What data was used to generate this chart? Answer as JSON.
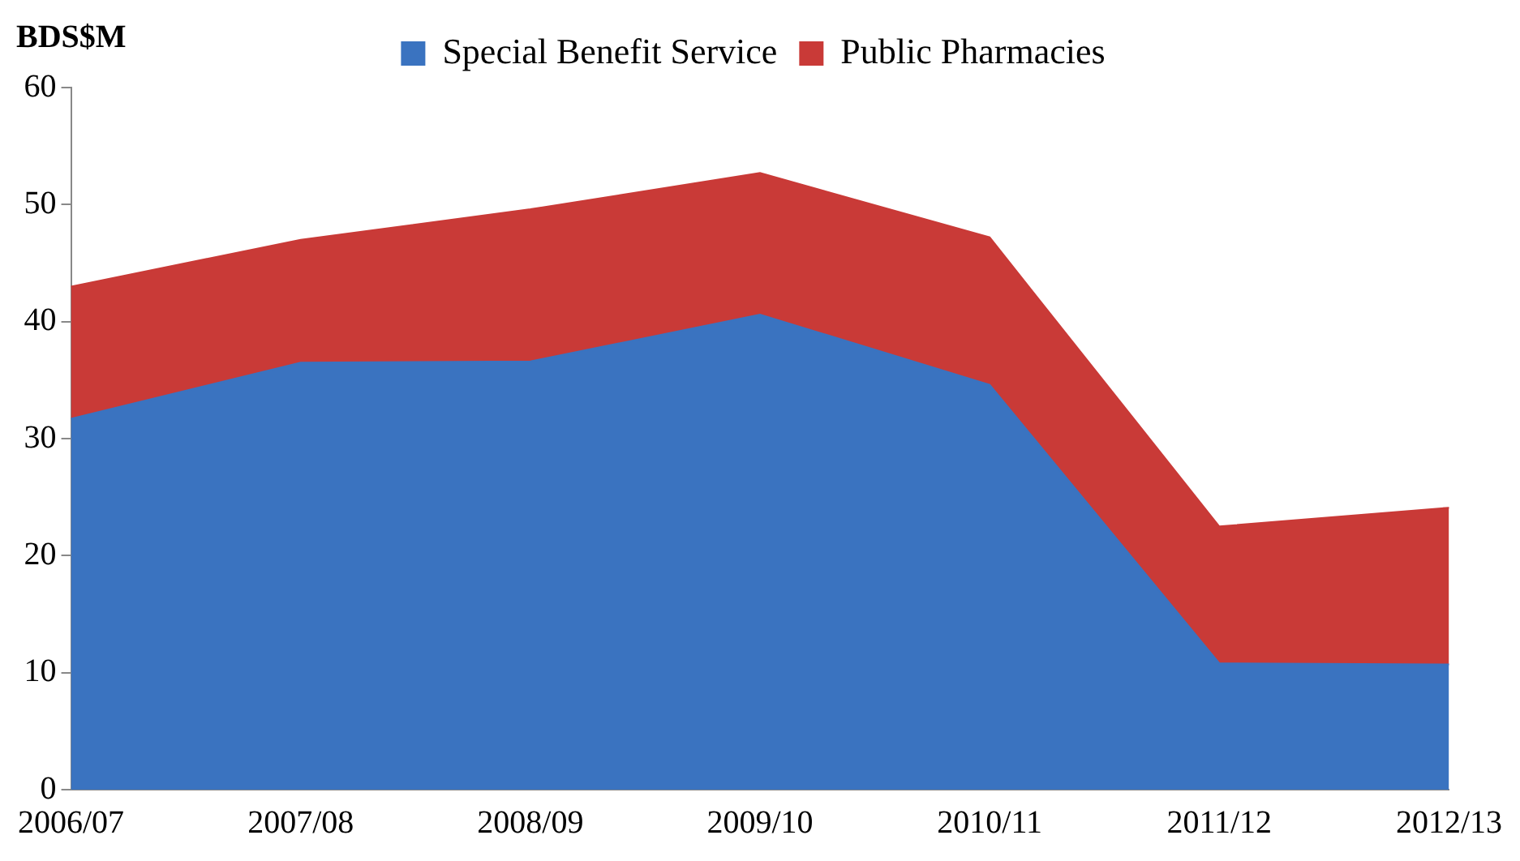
{
  "chart_data": {
    "type": "area",
    "stacked": true,
    "ylabel": "BDS$M",
    "categories": [
      "2006/07",
      "2007/08",
      "2008/09",
      "2009/10",
      "2010/11",
      "2011/12",
      "2012/13"
    ],
    "series": [
      {
        "name": "Special Benefit Service",
        "color": "#3a73c0",
        "values": [
          31.7,
          36.5,
          36.6,
          40.6,
          34.6,
          10.8,
          10.7
        ]
      },
      {
        "name": "Public Pharmacies",
        "color": "#c93a37",
        "values": [
          11.3,
          10.5,
          13.0,
          12.1,
          12.6,
          11.7,
          13.4
        ]
      }
    ],
    "ylim": [
      0,
      60
    ],
    "yticks": [
      0,
      10,
      20,
      30,
      40,
      50,
      60
    ],
    "grid": false,
    "legend": "top"
  }
}
